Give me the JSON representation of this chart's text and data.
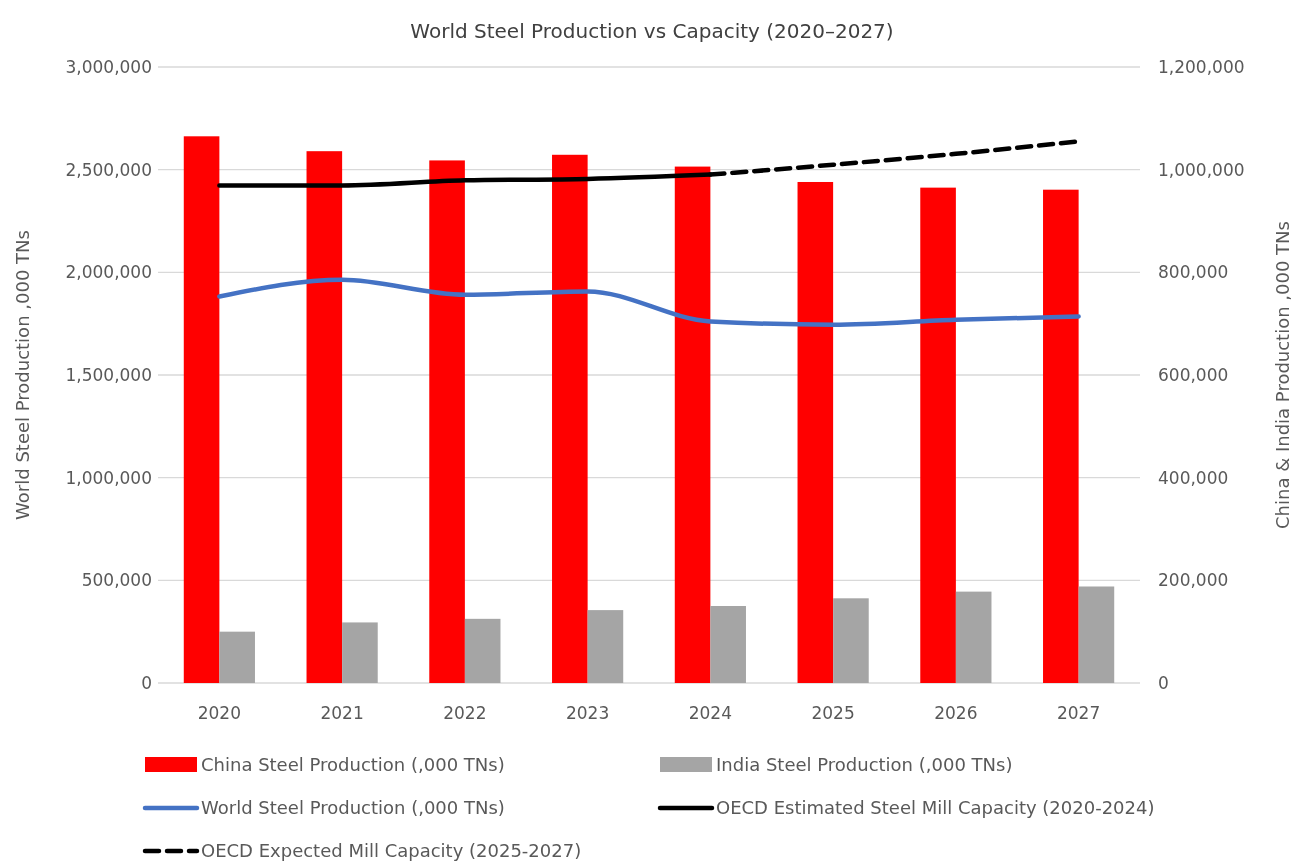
{
  "chart_data": {
    "type": "bar",
    "title": "World Steel Production vs Capacity (2020–2027)",
    "ylabel": "World Steel Production ,000 TNs",
    "y2label": "China & India Production ,000 TNs",
    "categories": [
      "2020",
      "2021",
      "2022",
      "2023",
      "2024",
      "2025",
      "2026",
      "2027"
    ],
    "series": [
      {
        "name": "China Steel Production (,000 TNs)",
        "axis": "y2",
        "color": "#ff0000",
        "values": [
          1065000,
          1036000,
          1018000,
          1029000,
          1006000,
          976000,
          965000,
          961000
        ]
      },
      {
        "name": "India Steel Production (,000 TNs)",
        "axis": "y2",
        "color": "#a5a5a5",
        "values": [
          100000,
          118000,
          125000,
          142000,
          150000,
          165000,
          178000,
          188000
        ]
      },
      {
        "name": "World Steel Production (,000 TNs)",
        "type": "line",
        "color": "#4472c4",
        "values": [
          1882000,
          1964000,
          1891000,
          1907000,
          1761000,
          1745000,
          1769000,
          1785000
        ]
      },
      {
        "name": "OECD Estimated Steel Mill Capacity (2020-2024)",
        "type": "line",
        "color": "#000000",
        "values": [
          2423000,
          2423000,
          2448000,
          2455000,
          2476000,
          null,
          null,
          null
        ]
      },
      {
        "name": "OECD Expected Mill Capacity (2025-2027)",
        "type": "line",
        "color": "#000000",
        "line_style": "dashed",
        "values": [
          null,
          null,
          null,
          null,
          2476000,
          2524000,
          2577000,
          2638000
        ]
      }
    ],
    "ylim": [
      0,
      3000000
    ],
    "yticks": [
      {
        "value": 0,
        "label": "0"
      },
      {
        "value": 500000,
        "label": "500,000"
      },
      {
        "value": 1000000,
        "label": "1,000,000"
      },
      {
        "value": 1500000,
        "label": "1,500,000"
      },
      {
        "value": 2000000,
        "label": "2,000,000"
      },
      {
        "value": 2500000,
        "label": "2,500,000"
      },
      {
        "value": 3000000,
        "label": "3,000,000"
      }
    ],
    "y2lim": [
      0,
      1200000
    ],
    "y2ticks": [
      {
        "value": 0,
        "label": "0"
      },
      {
        "value": 200000,
        "label": "200,000"
      },
      {
        "value": 400000,
        "label": "400,000"
      },
      {
        "value": 600000,
        "label": "600,000"
      },
      {
        "value": 800000,
        "label": "800,000"
      },
      {
        "value": 1000000,
        "label": "1,000,000"
      },
      {
        "value": 1200000,
        "label": "1,200,000"
      }
    ],
    "grid": "y",
    "legend": "bottom",
    "marker": "none",
    "line_style": "solid"
  }
}
